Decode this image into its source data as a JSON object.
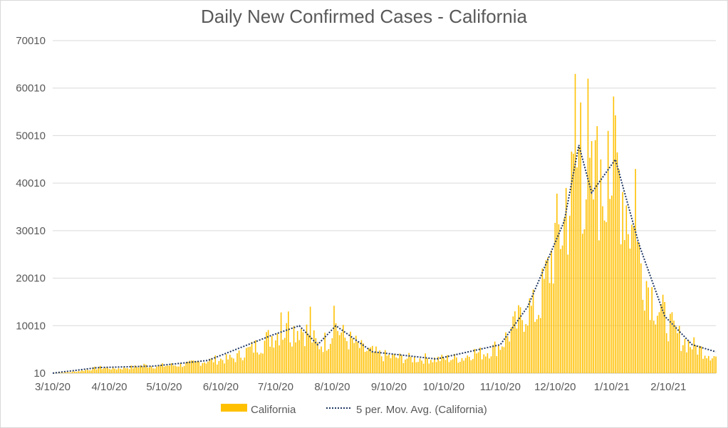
{
  "chart_data": {
    "type": "bar",
    "title": "Daily New Confirmed Cases - California",
    "xlabel": "",
    "ylabel": "",
    "ylim": [
      10,
      70010
    ],
    "y_ticks": [
      10,
      10010,
      20010,
      30010,
      40010,
      50010,
      60010,
      70010
    ],
    "x_tick_labels": [
      "3/10/20",
      "4/10/20",
      "5/10/20",
      "6/10/20",
      "7/10/20",
      "8/10/20",
      "9/10/20",
      "10/10/20",
      "11/10/20",
      "12/10/20",
      "1/10/21",
      "2/10/21"
    ],
    "x_range": [
      "2020-03-10",
      "2021-03-08"
    ],
    "grid": true,
    "legend_position": "bottom",
    "colors": {
      "bars": "#ffc000",
      "moving_average": "#203864",
      "grid": "#d9d9d9",
      "text": "#595959"
    },
    "series": [
      {
        "name": "California",
        "type": "bar"
      },
      {
        "name": "5 per. Mov. Avg. (California)",
        "type": "line",
        "style": "dotted",
        "period": 5
      }
    ],
    "values": [
      [
        "2020-03-10",
        10
      ],
      [
        "2020-03-15",
        150
      ],
      [
        "2020-03-20",
        250
      ],
      [
        "2020-03-25",
        500
      ],
      [
        "2020-03-30",
        800
      ],
      [
        "2020-04-04",
        1200
      ],
      [
        "2020-04-09",
        1100
      ],
      [
        "2020-04-14",
        1000
      ],
      [
        "2020-04-19",
        1200
      ],
      [
        "2020-04-24",
        1300
      ],
      [
        "2020-04-29",
        1700
      ],
      [
        "2020-05-04",
        1500
      ],
      [
        "2020-05-09",
        1600
      ],
      [
        "2020-05-14",
        1700
      ],
      [
        "2020-05-19",
        1800
      ],
      [
        "2020-05-24",
        2000
      ],
      [
        "2020-05-29",
        2400
      ],
      [
        "2020-06-03",
        2700
      ],
      [
        "2020-06-08",
        2900
      ],
      [
        "2020-06-13",
        3000
      ],
      [
        "2020-06-18",
        3300
      ],
      [
        "2020-06-23",
        4500
      ],
      [
        "2020-06-28",
        5500
      ],
      [
        "2020-07-03",
        6500
      ],
      [
        "2020-07-08",
        8000
      ],
      [
        "2020-07-13",
        9000
      ],
      [
        "2020-07-18",
        8800
      ],
      [
        "2020-07-23",
        10000
      ],
      [
        "2020-07-28",
        8500
      ],
      [
        "2020-08-02",
        6000
      ],
      [
        "2020-08-07",
        7000
      ],
      [
        "2020-08-12",
        10000
      ],
      [
        "2020-08-17",
        7500
      ],
      [
        "2020-08-22",
        6500
      ],
      [
        "2020-08-27",
        5000
      ],
      [
        "2020-09-01",
        4500
      ],
      [
        "2020-09-06",
        3800
      ],
      [
        "2020-09-11",
        3500
      ],
      [
        "2020-09-16",
        3300
      ],
      [
        "2020-09-21",
        3200
      ],
      [
        "2020-09-26",
        3100
      ],
      [
        "2020-10-01",
        3200
      ],
      [
        "2020-10-06",
        3000
      ],
      [
        "2020-10-11",
        3100
      ],
      [
        "2020-10-16",
        3200
      ],
      [
        "2020-10-21",
        3300
      ],
      [
        "2020-10-26",
        4500
      ],
      [
        "2020-10-31",
        4200
      ],
      [
        "2020-11-05",
        5000
      ],
      [
        "2020-11-10",
        6000
      ],
      [
        "2020-11-15",
        8500
      ],
      [
        "2020-11-20",
        11000
      ],
      [
        "2020-11-25",
        14000
      ],
      [
        "2020-11-30",
        13000
      ],
      [
        "2020-12-05",
        20000
      ],
      [
        "2020-12-10",
        28000
      ],
      [
        "2020-12-15",
        32000
      ],
      [
        "2020-12-20",
        40000
      ],
      [
        "2020-12-23",
        45000
      ],
      [
        "2020-12-26",
        42000
      ],
      [
        "2020-12-30",
        38000
      ],
      [
        "2021-01-03",
        41000
      ],
      [
        "2021-01-07",
        40000
      ],
      [
        "2021-01-12",
        45000
      ],
      [
        "2021-01-16",
        40000
      ],
      [
        "2021-01-20",
        33000
      ],
      [
        "2021-01-25",
        25000
      ],
      [
        "2021-01-29",
        20000
      ],
      [
        "2021-02-03",
        15000
      ],
      [
        "2021-02-08",
        12000
      ],
      [
        "2021-02-13",
        9000
      ],
      [
        "2021-02-18",
        7000
      ],
      [
        "2021-02-23",
        6000
      ],
      [
        "2021-02-28",
        5000
      ],
      [
        "2021-03-08",
        3500
      ]
    ],
    "moving_average": [
      [
        "2020-03-10",
        10
      ],
      [
        "2020-04-04",
        1200
      ],
      [
        "2020-05-04",
        1500
      ],
      [
        "2020-06-03",
        2700
      ],
      [
        "2020-07-08",
        8000
      ],
      [
        "2020-07-23",
        10000
      ],
      [
        "2020-08-02",
        6000
      ],
      [
        "2020-08-12",
        10000
      ],
      [
        "2020-09-01",
        4500
      ],
      [
        "2020-10-06",
        3000
      ],
      [
        "2020-11-10",
        6000
      ],
      [
        "2020-11-25",
        14000
      ],
      [
        "2020-12-15",
        32000
      ],
      [
        "2020-12-23",
        48000
      ],
      [
        "2020-12-30",
        38000
      ],
      [
        "2021-01-12",
        45000
      ],
      [
        "2021-01-25",
        27000
      ],
      [
        "2021-02-08",
        12000
      ],
      [
        "2021-02-23",
        6000
      ],
      [
        "2021-03-08",
        4500
      ]
    ],
    "spikes": [
      [
        "2020-12-21",
        63000
      ],
      [
        "2020-12-28",
        62000
      ],
      [
        "2021-01-02",
        52000
      ],
      [
        "2021-01-08",
        51000
      ],
      [
        "2021-01-23",
        43000
      ],
      [
        "2021-01-04",
        45000
      ],
      [
        "2020-12-16",
        39000
      ],
      [
        "2020-12-24",
        57000
      ],
      [
        "2020-07-29",
        14000
      ],
      [
        "2020-08-11",
        14200
      ],
      [
        "2020-07-13",
        12800
      ],
      [
        "2020-07-17",
        13000
      ]
    ]
  }
}
